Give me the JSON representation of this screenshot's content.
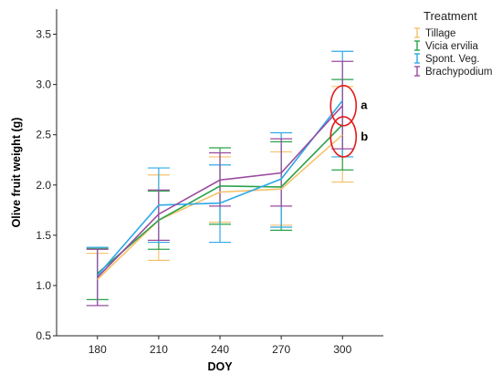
{
  "chart_data": {
    "type": "line",
    "title": "",
    "xlabel": "DOY",
    "ylabel": "Olive fruit weight (g)",
    "x": [
      180,
      210,
      240,
      270,
      300
    ],
    "ylim": [
      0.5,
      3.75
    ],
    "yticks": [
      "0.5",
      "1.0",
      "1.5",
      "2.0",
      "2.5",
      "3.0",
      "3.5"
    ],
    "grid": false,
    "legend_position": "top-right",
    "legend_title": "Treatment",
    "series": [
      {
        "name": "Tillage",
        "color": "#f5c26b",
        "values": [
          1.06,
          1.65,
          1.93,
          1.96,
          2.5
        ],
        "err_low": [
          0.8,
          1.25,
          1.63,
          1.6,
          2.03
        ],
        "err_high": [
          1.32,
          2.1,
          2.28,
          2.33,
          2.98
        ]
      },
      {
        "name": "Vicia ervilia",
        "color": "#2aa24b",
        "values": [
          1.12,
          1.65,
          1.99,
          1.98,
          2.6
        ],
        "err_low": [
          0.86,
          1.36,
          1.61,
          1.55,
          2.15
        ],
        "err_high": [
          1.37,
          1.94,
          2.37,
          2.43,
          3.05
        ]
      },
      {
        "name": "Spont. Veg.",
        "color": "#2fa9e8",
        "values": [
          1.1,
          1.8,
          1.82,
          2.06,
          2.84
        ],
        "err_low": [
          0.8,
          1.43,
          1.43,
          1.58,
          2.28
        ],
        "err_high": [
          1.38,
          2.17,
          2.2,
          2.52,
          3.33
        ]
      },
      {
        "name": "Brachypodium",
        "color": "#9a4a9e",
        "values": [
          1.08,
          1.71,
          2.05,
          2.12,
          2.79
        ],
        "err_low": [
          0.8,
          1.45,
          1.79,
          1.79,
          2.36
        ],
        "err_high": [
          1.36,
          1.95,
          2.32,
          2.46,
          3.23
        ]
      }
    ],
    "annotations": [
      {
        "label": "a",
        "x": 300,
        "y": 2.79
      },
      {
        "label": "b",
        "x": 300,
        "y": 2.48
      }
    ]
  }
}
